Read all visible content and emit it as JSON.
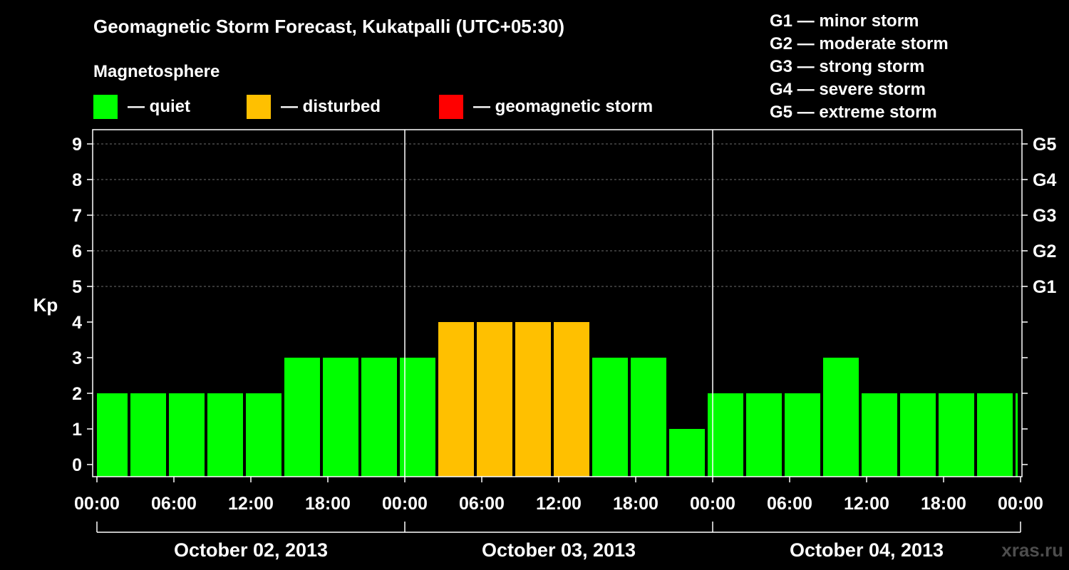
{
  "chart_data": {
    "type": "bar",
    "title": "Geomagnetic Storm Forecast, Kukatpalli (UTC+05:30)",
    "subtitle": "Magnetosphere",
    "ylabel": "Kp",
    "ylim": [
      0,
      9
    ],
    "yticks": [
      "0",
      "1",
      "2",
      "3",
      "4",
      "5",
      "6",
      "7",
      "8",
      "9"
    ],
    "right_ticks": [
      {
        "kp": 5,
        "label": "G1"
      },
      {
        "kp": 6,
        "label": "G2"
      },
      {
        "kp": 7,
        "label": "G3"
      },
      {
        "kp": 8,
        "label": "G4"
      },
      {
        "kp": 9,
        "label": "G5"
      }
    ],
    "x_hours_total": 72,
    "x_tick_labels": [
      "00:00",
      "06:00",
      "12:00",
      "18:00",
      "00:00",
      "06:00",
      "12:00",
      "18:00",
      "00:00",
      "06:00",
      "12:00",
      "18:00",
      "00:00"
    ],
    "days": [
      "October 02, 2013",
      "October 03, 2013",
      "October 04, 2013"
    ],
    "bar_start_hours": [
      -0.5,
      2.5,
      5.5,
      8.5,
      11.5,
      14.5,
      17.5,
      20.5,
      23.5,
      26.5,
      29.5,
      32.5,
      35.5,
      38.5,
      41.5,
      44.5,
      47.5,
      50.5,
      53.5,
      56.5,
      59.5,
      62.5,
      65.5,
      68.5,
      71.5
    ],
    "values": [
      2,
      2,
      2,
      2,
      2,
      3,
      3,
      3,
      3,
      4,
      4,
      4,
      4,
      3,
      3,
      1,
      2,
      2,
      2,
      3,
      2,
      2,
      2,
      2,
      2
    ],
    "legend": [
      {
        "label": "— quiet",
        "color": "#00ff00"
      },
      {
        "label": "— disturbed",
        "color": "#ffc000"
      },
      {
        "label": "— geomagnetic storm",
        "color": "#ff0000"
      }
    ],
    "storm_levels": [
      "G1 — minor storm",
      "G2 — moderate storm",
      "G3 — strong storm",
      "G4 — severe storm",
      "G5 — extreme storm"
    ],
    "watermark": "xras.ru"
  }
}
